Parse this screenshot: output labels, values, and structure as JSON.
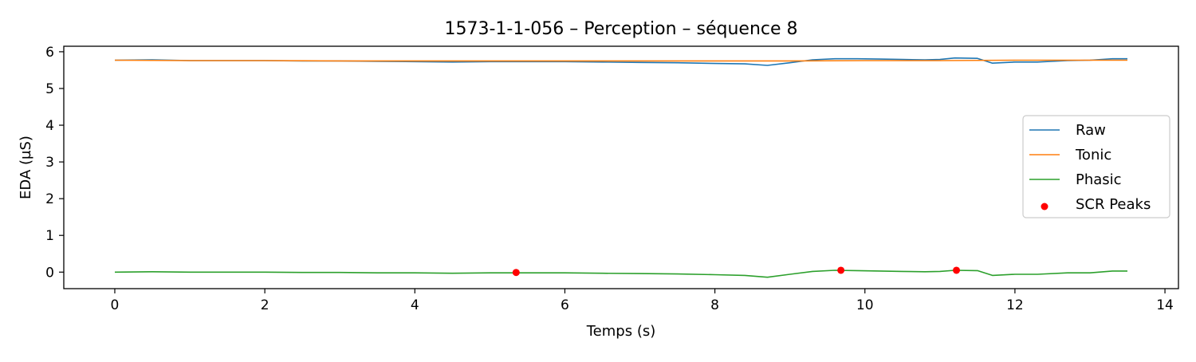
{
  "chart_data": {
    "type": "line",
    "title": "1573-1-1-056 – Perception – séquence 8",
    "xlabel": "Temps (s)",
    "ylabel": "EDA (µS)",
    "xlim": [
      -0.68,
      14.18
    ],
    "ylim": [
      -0.45,
      6.15
    ],
    "xticks": [
      0,
      2,
      4,
      6,
      8,
      10,
      12,
      14
    ],
    "xtick_labels": [
      "0",
      "2",
      "4",
      "6",
      "8",
      "10",
      "12",
      "14"
    ],
    "yticks": [
      0,
      1,
      2,
      3,
      4,
      5,
      6
    ],
    "ytick_labels": [
      "0",
      "1",
      "2",
      "3",
      "4",
      "5",
      "6"
    ],
    "grid": false,
    "legend_position": "center-right",
    "series": [
      {
        "name": "Raw",
        "kind": "line",
        "color": "#1f77b4",
        "x": [
          0,
          0.5,
          1.0,
          1.5,
          2.0,
          2.5,
          3.0,
          3.5,
          4.0,
          4.5,
          5.0,
          5.5,
          6.0,
          6.5,
          7.0,
          7.5,
          8.0,
          8.4,
          8.7,
          9.0,
          9.3,
          9.6,
          9.9,
          10.2,
          10.5,
          10.8,
          11.0,
          11.2,
          11.5,
          11.7,
          12.0,
          12.3,
          12.7,
          13.0,
          13.3,
          13.5
        ],
        "y": [
          5.77,
          5.78,
          5.76,
          5.76,
          5.76,
          5.75,
          5.75,
          5.74,
          5.73,
          5.72,
          5.73,
          5.73,
          5.73,
          5.72,
          5.71,
          5.7,
          5.68,
          5.67,
          5.63,
          5.7,
          5.78,
          5.81,
          5.81,
          5.8,
          5.79,
          5.78,
          5.79,
          5.83,
          5.82,
          5.69,
          5.72,
          5.72,
          5.76,
          5.77,
          5.81,
          5.81
        ]
      },
      {
        "name": "Tonic",
        "kind": "line",
        "color": "#ff7f0e",
        "x": [
          0,
          1,
          2,
          3,
          4,
          5,
          6,
          7,
          8,
          9,
          10,
          11,
          12,
          13,
          13.5
        ],
        "y": [
          5.77,
          5.76,
          5.76,
          5.75,
          5.75,
          5.75,
          5.75,
          5.75,
          5.75,
          5.75,
          5.76,
          5.76,
          5.77,
          5.77,
          5.77
        ]
      },
      {
        "name": "Phasic",
        "kind": "line",
        "color": "#2ca02c",
        "x": [
          0,
          0.5,
          1.0,
          1.5,
          2.0,
          2.5,
          3.0,
          3.5,
          4.0,
          4.5,
          5.0,
          5.5,
          6.0,
          6.5,
          7.0,
          7.5,
          8.0,
          8.4,
          8.7,
          9.0,
          9.3,
          9.6,
          9.9,
          10.2,
          10.5,
          10.8,
          11.0,
          11.2,
          11.5,
          11.7,
          12.0,
          12.3,
          12.7,
          13.0,
          13.3,
          13.5
        ],
        "y": [
          0.0,
          0.01,
          0.0,
          0.0,
          0.0,
          -0.01,
          -0.01,
          -0.02,
          -0.02,
          -0.03,
          -0.02,
          -0.02,
          -0.02,
          -0.03,
          -0.04,
          -0.05,
          -0.07,
          -0.09,
          -0.14,
          -0.06,
          0.02,
          0.05,
          0.04,
          0.03,
          0.02,
          0.01,
          0.02,
          0.05,
          0.04,
          -0.09,
          -0.06,
          -0.06,
          -0.02,
          -0.02,
          0.03,
          0.03
        ]
      },
      {
        "name": "SCR Peaks",
        "kind": "scatter",
        "color": "#ff0000",
        "x": [
          5.35,
          9.68,
          11.22
        ],
        "y": [
          -0.01,
          0.05,
          0.05
        ]
      }
    ]
  }
}
